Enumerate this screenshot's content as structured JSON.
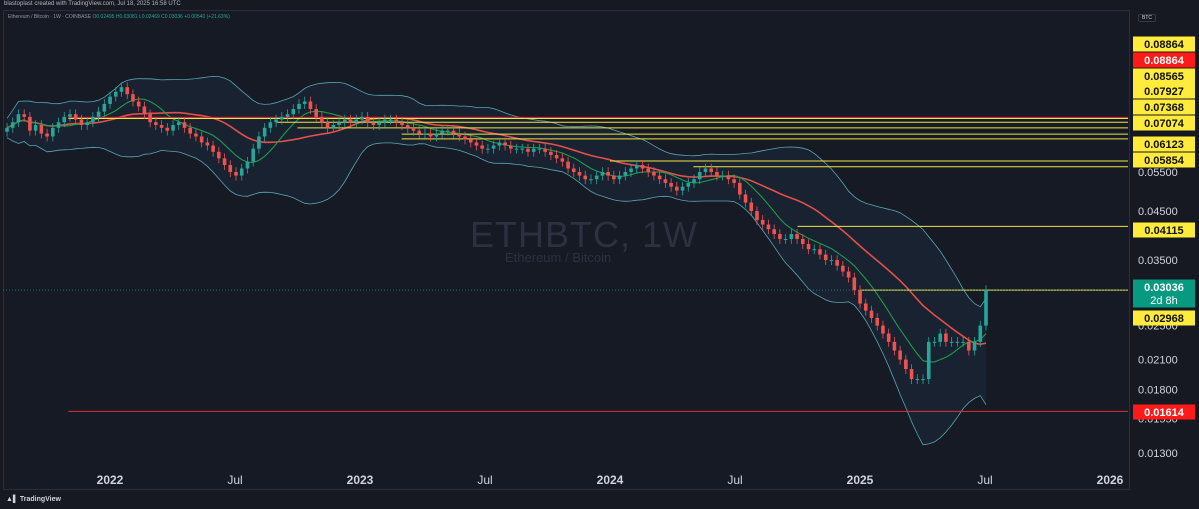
{
  "header": {
    "created_by": "blastoplast created with TradingView.com, Jul 18, 2025 16:58 UTC",
    "symbol_info": "Ethereum / Bitcoin · 1W · COINBASE",
    "ohlc": "O0.02495 H0.03081 L0.02469 C0.03036 +0.00540 (+21.63%)",
    "currency_badge": "BTC"
  },
  "watermark": {
    "symbol": "ETHBTC, 1W",
    "name": "Ethereum / Bitcoin"
  },
  "footer": {
    "brand": "TradingView"
  },
  "colors": {
    "up": "#26a69a",
    "down": "#ef5350",
    "level_line": "#f0e442",
    "support_line": "#e03030",
    "bb_fill": "#1d2a3a",
    "bb_line": "#5aa5b0",
    "ma_fast": "#1f9c4a",
    "ma_slow": "#e0504a",
    "badge_yellow": "#ffeb3b",
    "badge_red": "#ff1a1a",
    "badge_green": "#089981"
  },
  "chart_data": {
    "type": "candlestick",
    "title": "ETHBTC, 1W",
    "subtitle": "Ethereum / Bitcoin",
    "y_scale": "log",
    "x_ticks": [
      "2022",
      "Jul",
      "2023",
      "Jul",
      "2024",
      "Jul",
      "2025",
      "Jul",
      "2026"
    ],
    "y_ticks": [
      "0.05500",
      "0.04500",
      "0.03500",
      "0.02500",
      "0.02100",
      "0.01800",
      "0.01550",
      "0.01300"
    ],
    "price_badges": [
      {
        "label": "0.08864",
        "kind": "yellow"
      },
      {
        "label": "0.08864",
        "kind": "red"
      },
      {
        "label": "0.08565",
        "kind": "yellow"
      },
      {
        "label": "0.07927",
        "kind": "yellow"
      },
      {
        "label": "0.07368",
        "kind": "yellow"
      },
      {
        "label": "0.07074",
        "kind": "yellow"
      },
      {
        "label": "0.06123",
        "kind": "yellow"
      },
      {
        "label": "0.05854",
        "kind": "yellow"
      },
      {
        "label": "0.04115",
        "kind": "yellow"
      },
      {
        "label": "0.03036",
        "kind": "green",
        "sub": "2d 8h"
      },
      {
        "label": "0.02968",
        "kind": "yellow"
      },
      {
        "label": "0.01614",
        "kind": "red"
      }
    ],
    "horizontal_levels": [
      {
        "price": 0.0728,
        "start": "2021-11",
        "color": "red"
      },
      {
        "price": 0.0724,
        "start": "2021-11",
        "color": "yellow"
      },
      {
        "price": 0.071,
        "start": "2022-09",
        "color": "yellow"
      },
      {
        "price": 0.069,
        "start": "2022-10",
        "color": "yellow"
      },
      {
        "price": 0.0668,
        "start": "2023-03",
        "color": "yellow"
      },
      {
        "price": 0.0652,
        "start": "2023-03",
        "color": "yellow"
      },
      {
        "price": 0.0582,
        "start": "2024-01",
        "color": "yellow"
      },
      {
        "price": 0.0565,
        "start": "2024-05",
        "color": "yellow"
      },
      {
        "price": 0.0416,
        "start": "2024-10",
        "color": "yellow"
      },
      {
        "price": 0.03,
        "start": "2025-01",
        "color": "yellow"
      },
      {
        "price": 0.0161,
        "start": "2021-11",
        "color": "red"
      }
    ],
    "weekly_closes": [
      0.069,
      0.071,
      0.074,
      0.073,
      0.068,
      0.07,
      0.067,
      0.066,
      0.069,
      0.071,
      0.073,
      0.074,
      0.072,
      0.07,
      0.071,
      0.073,
      0.075,
      0.078,
      0.081,
      0.083,
      0.085,
      0.082,
      0.079,
      0.077,
      0.074,
      0.071,
      0.07,
      0.069,
      0.068,
      0.07,
      0.071,
      0.069,
      0.067,
      0.066,
      0.064,
      0.063,
      0.061,
      0.059,
      0.057,
      0.055,
      0.054,
      0.056,
      0.058,
      0.062,
      0.066,
      0.069,
      0.071,
      0.072,
      0.073,
      0.074,
      0.076,
      0.078,
      0.079,
      0.076,
      0.073,
      0.071,
      0.069,
      0.07,
      0.071,
      0.072,
      0.071,
      0.072,
      0.073,
      0.071,
      0.07,
      0.071,
      0.072,
      0.072,
      0.071,
      0.07,
      0.069,
      0.068,
      0.067,
      0.067,
      0.066,
      0.067,
      0.068,
      0.068,
      0.067,
      0.066,
      0.065,
      0.064,
      0.063,
      0.062,
      0.062,
      0.063,
      0.064,
      0.063,
      0.062,
      0.062,
      0.062,
      0.061,
      0.062,
      0.062,
      0.061,
      0.06,
      0.059,
      0.058,
      0.056,
      0.055,
      0.054,
      0.053,
      0.053,
      0.054,
      0.055,
      0.054,
      0.053,
      0.054,
      0.055,
      0.056,
      0.057,
      0.056,
      0.055,
      0.054,
      0.053,
      0.052,
      0.051,
      0.05,
      0.051,
      0.052,
      0.053,
      0.055,
      0.056,
      0.055,
      0.054,
      0.054,
      0.053,
      0.052,
      0.049,
      0.047,
      0.045,
      0.043,
      0.042,
      0.041,
      0.04,
      0.039,
      0.039,
      0.04,
      0.039,
      0.038,
      0.037,
      0.037,
      0.036,
      0.035,
      0.035,
      0.034,
      0.033,
      0.032,
      0.03,
      0.028,
      0.027,
      0.026,
      0.025,
      0.024,
      0.023,
      0.022,
      0.021,
      0.02,
      0.019,
      0.019,
      0.019,
      0.023,
      0.023,
      0.024,
      0.023,
      0.023,
      0.023,
      0.023,
      0.022,
      0.023,
      0.025,
      0.03
    ]
  }
}
